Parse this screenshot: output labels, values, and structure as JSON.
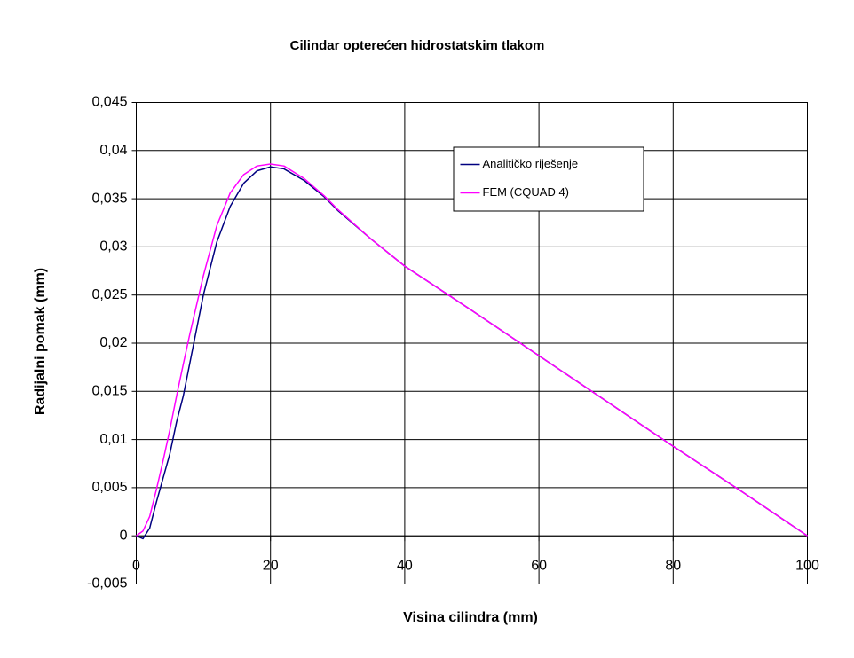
{
  "chart_data": {
    "type": "line",
    "title": "Cilindar opterećen hidrostatskim tlakom",
    "x_label": "Visina cilindra (mm)",
    "y_label": "Radijalni pomak (mm)",
    "x": [
      0,
      1,
      2,
      3,
      4,
      5,
      6,
      7,
      8,
      10,
      12,
      14,
      16,
      18,
      20,
      22,
      25,
      28,
      30,
      35,
      40,
      50,
      60,
      70,
      80,
      90,
      100
    ],
    "series": [
      {
        "name": "Analitičko riješenje",
        "color": "#000080",
        "values": [
          0,
          -0.0003,
          0.0008,
          0.0035,
          0.006,
          0.0085,
          0.0118,
          0.0145,
          0.018,
          0.025,
          0.0305,
          0.0342,
          0.0366,
          0.0379,
          0.0383,
          0.0381,
          0.0369,
          0.0352,
          0.0338,
          0.0308,
          0.028,
          0.0234,
          0.0187,
          0.014,
          0.0093,
          0.0047,
          0
        ]
      },
      {
        "name": "FEM (CQUAD 4)",
        "color": "#ff00ff",
        "values": [
          0,
          0.0005,
          0.002,
          0.0048,
          0.0078,
          0.011,
          0.0145,
          0.0178,
          0.021,
          0.027,
          0.0322,
          0.0356,
          0.0375,
          0.0384,
          0.0386,
          0.0384,
          0.0371,
          0.0353,
          0.0339,
          0.0308,
          0.028,
          0.0234,
          0.0187,
          0.014,
          0.0093,
          0.0047,
          0
        ]
      }
    ],
    "xlim": [
      0,
      100
    ],
    "xticks": [
      0,
      20,
      40,
      60,
      80,
      100
    ],
    "ylim": [
      -0.005,
      0.045
    ],
    "yticks": [
      {
        "value": -0.005,
        "label": "-0,005"
      },
      0,
      {
        "value": 0.005,
        "label": "0,005"
      },
      {
        "value": 0.01,
        "label": "0,01"
      },
      {
        "value": 0.015,
        "label": "0,015"
      },
      {
        "value": 0.02,
        "label": "0,02"
      },
      {
        "value": 0.025,
        "label": "0,025"
      },
      {
        "value": 0.03,
        "label": "0,03"
      },
      {
        "value": 0.035,
        "label": "0,035"
      },
      {
        "value": 0.04,
        "label": "0,04"
      },
      {
        "value": 0.045,
        "label": "0,045"
      }
    ],
    "grid": true,
    "legend": "upper right"
  }
}
